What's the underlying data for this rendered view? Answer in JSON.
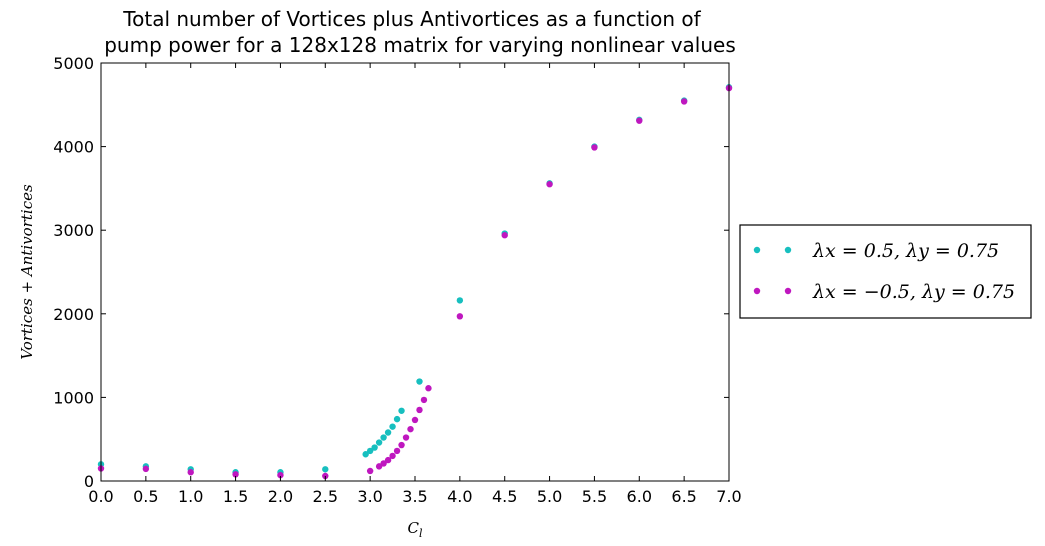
{
  "chart_data": {
    "type": "scatter",
    "title": "Total number of Vortices plus Antivortices as a function of",
    "title_line2": "pump power for a 128x128 matrix for varying nonlinear values",
    "xlabel": "C_l",
    "ylabel": "Vortices + Antivortices",
    "xlim": [
      0.0,
      7.0
    ],
    "ylim": [
      0,
      5000
    ],
    "xticks": [
      "0.0",
      "0.5",
      "1.0",
      "1.5",
      "2.0",
      "2.5",
      "3.0",
      "3.5",
      "4.0",
      "4.5",
      "5.0",
      "5.5",
      "6.0",
      "6.5",
      "7.0"
    ],
    "yticks": [
      "0",
      "1000",
      "2000",
      "3000",
      "4000",
      "5000"
    ],
    "grid": false,
    "legend_position": "right-outside",
    "series": [
      {
        "name": "λx = 0.5, λy = 0.75",
        "color": "#17bfbf",
        "points": [
          [
            0.0,
            200
          ],
          [
            0.5,
            175
          ],
          [
            1.0,
            140
          ],
          [
            1.5,
            105
          ],
          [
            2.0,
            105
          ],
          [
            2.5,
            140
          ],
          [
            2.95,
            320
          ],
          [
            3.0,
            360
          ],
          [
            3.05,
            400
          ],
          [
            3.1,
            460
          ],
          [
            3.15,
            520
          ],
          [
            3.2,
            580
          ],
          [
            3.25,
            650
          ],
          [
            3.3,
            740
          ],
          [
            3.35,
            840
          ],
          [
            3.55,
            1190
          ],
          [
            4.0,
            2160
          ],
          [
            4.5,
            2960
          ],
          [
            5.0,
            3560
          ],
          [
            5.5,
            4000
          ],
          [
            6.0,
            4320
          ],
          [
            6.5,
            4550
          ],
          [
            7.0,
            4710
          ]
        ]
      },
      {
        "name": "λx = −0.5, λy = 0.75",
        "color": "#bf17bf",
        "points": [
          [
            0.0,
            150
          ],
          [
            0.5,
            145
          ],
          [
            1.0,
            105
          ],
          [
            1.5,
            80
          ],
          [
            2.0,
            70
          ],
          [
            2.5,
            60
          ],
          [
            3.0,
            120
          ],
          [
            3.1,
            175
          ],
          [
            3.15,
            210
          ],
          [
            3.2,
            250
          ],
          [
            3.25,
            300
          ],
          [
            3.3,
            360
          ],
          [
            3.35,
            430
          ],
          [
            3.4,
            520
          ],
          [
            3.45,
            620
          ],
          [
            3.5,
            730
          ],
          [
            3.55,
            850
          ],
          [
            3.6,
            970
          ],
          [
            3.65,
            1110
          ],
          [
            4.0,
            1970
          ],
          [
            4.5,
            2940
          ],
          [
            5.0,
            3550
          ],
          [
            5.5,
            3990
          ],
          [
            6.0,
            4310
          ],
          [
            6.5,
            4540
          ],
          [
            7.0,
            4700
          ]
        ]
      }
    ]
  }
}
